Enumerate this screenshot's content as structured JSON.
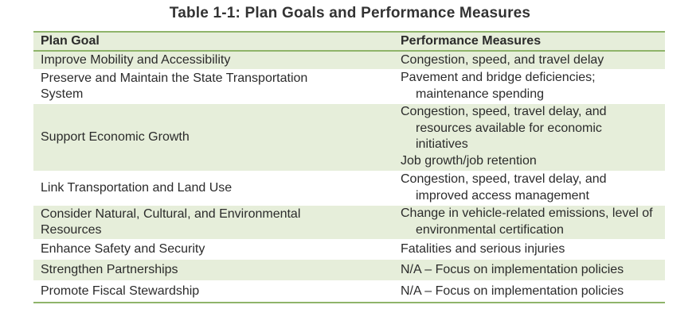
{
  "title": "Table 1-1: Plan Goals and Performance Measures",
  "headers": {
    "goal": "Plan Goal",
    "measures": "Performance Measures"
  },
  "rows": [
    {
      "goal": "Improve Mobility and Accessibility",
      "measures": [
        "Congestion, speed, and travel delay"
      ]
    },
    {
      "goal": "Preserve and Maintain the State Transportation System",
      "measures": [
        "Pavement and bridge deficiencies; maintenance spending"
      ]
    },
    {
      "goal": "Support Economic Growth",
      "measures": [
        "Congestion, speed, travel delay, and resources available for economic initiatives",
        "Job growth/job retention"
      ]
    },
    {
      "goal": "Link Transportation and Land Use",
      "measures": [
        "Congestion, speed, travel delay, and improved access management"
      ]
    },
    {
      "goal": "Consider Natural, Cultural, and Environmental Resources",
      "measures": [
        "Change in vehicle-related emissions, level of environmental certification"
      ]
    },
    {
      "goal": "Enhance Safety and Security",
      "measures": [
        "Fatalities and serious injuries"
      ]
    },
    {
      "goal": "Strengthen Partnerships",
      "measures": [
        "N/A – Focus on implementation policies"
      ]
    },
    {
      "goal": "Promote Fiscal Stewardship",
      "measures": [
        "N/A – Focus on implementation policies"
      ]
    }
  ],
  "colors": {
    "shade": "#e6eeda",
    "rule": "#8fb46a",
    "text": "#2b2b2b"
  }
}
